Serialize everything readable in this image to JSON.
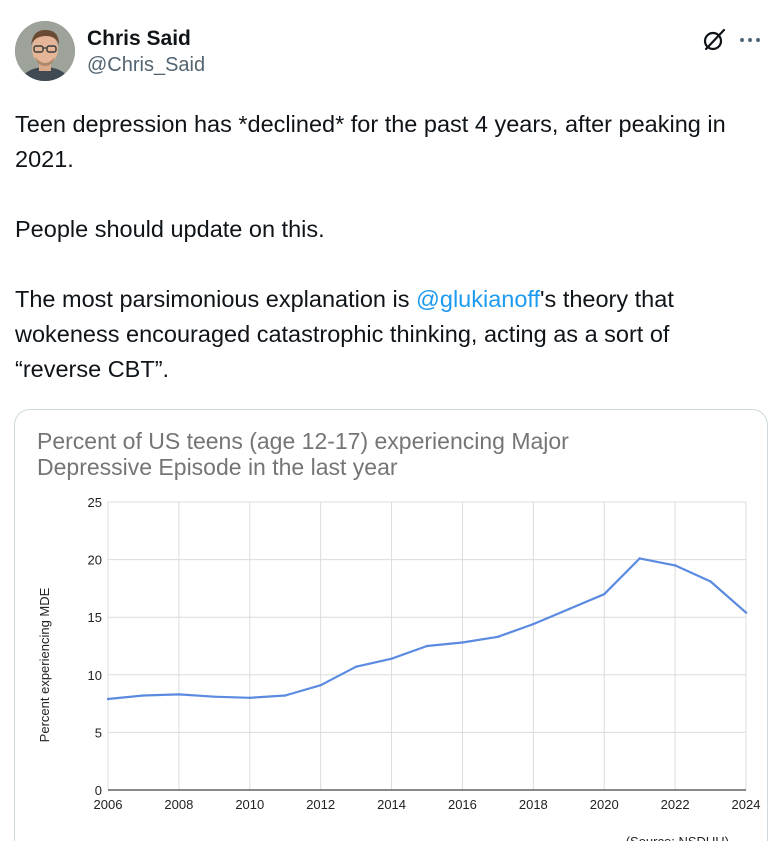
{
  "tweet": {
    "author": {
      "display_name": "Chris Said",
      "handle": "@Chris_Said"
    },
    "icons": {
      "grok": "grok-icon",
      "more": "more-icon"
    },
    "text": {
      "p1": "Teen depression has *declined* for the past 4 years, after peaking in 2021.",
      "p2": "People should update on this.",
      "p3_before": "The most parsimonious explanation is ",
      "p3_mention": "@glukianoff",
      "p3_after": "'s theory that wokeness encouraged catastrophic thinking, acting as a sort of “reverse CBT”."
    },
    "colors": {
      "mention": "#1d9bf0",
      "line": "#5b8be0"
    }
  },
  "chart_data": {
    "type": "line",
    "title_line1": "Percent of US teens (age 12-17) experiencing Major",
    "title_line2": "Depressive Episode in the last year",
    "xlabel": "",
    "ylabel": "Percent experiencing MDE",
    "source": "(Source: NSDUH)",
    "xlim": [
      2006,
      2024
    ],
    "ylim": [
      0,
      25
    ],
    "x_ticks": [
      2006,
      2008,
      2010,
      2012,
      2014,
      2016,
      2018,
      2020,
      2022,
      2024
    ],
    "y_ticks": [
      0,
      5,
      10,
      15,
      20,
      25
    ],
    "grid": true,
    "series": [
      {
        "name": "MDE %",
        "x": [
          2006,
          2007,
          2008,
          2009,
          2010,
          2011,
          2012,
          2013,
          2014,
          2015,
          2016,
          2017,
          2018,
          2019,
          2020,
          2021,
          2022,
          2023,
          2024
        ],
        "values": [
          7.9,
          8.2,
          8.3,
          8.1,
          8.0,
          8.2,
          9.1,
          10.7,
          11.4,
          12.5,
          12.8,
          13.3,
          14.4,
          15.7,
          17.0,
          20.1,
          19.5,
          18.1,
          15.4
        ]
      }
    ]
  }
}
